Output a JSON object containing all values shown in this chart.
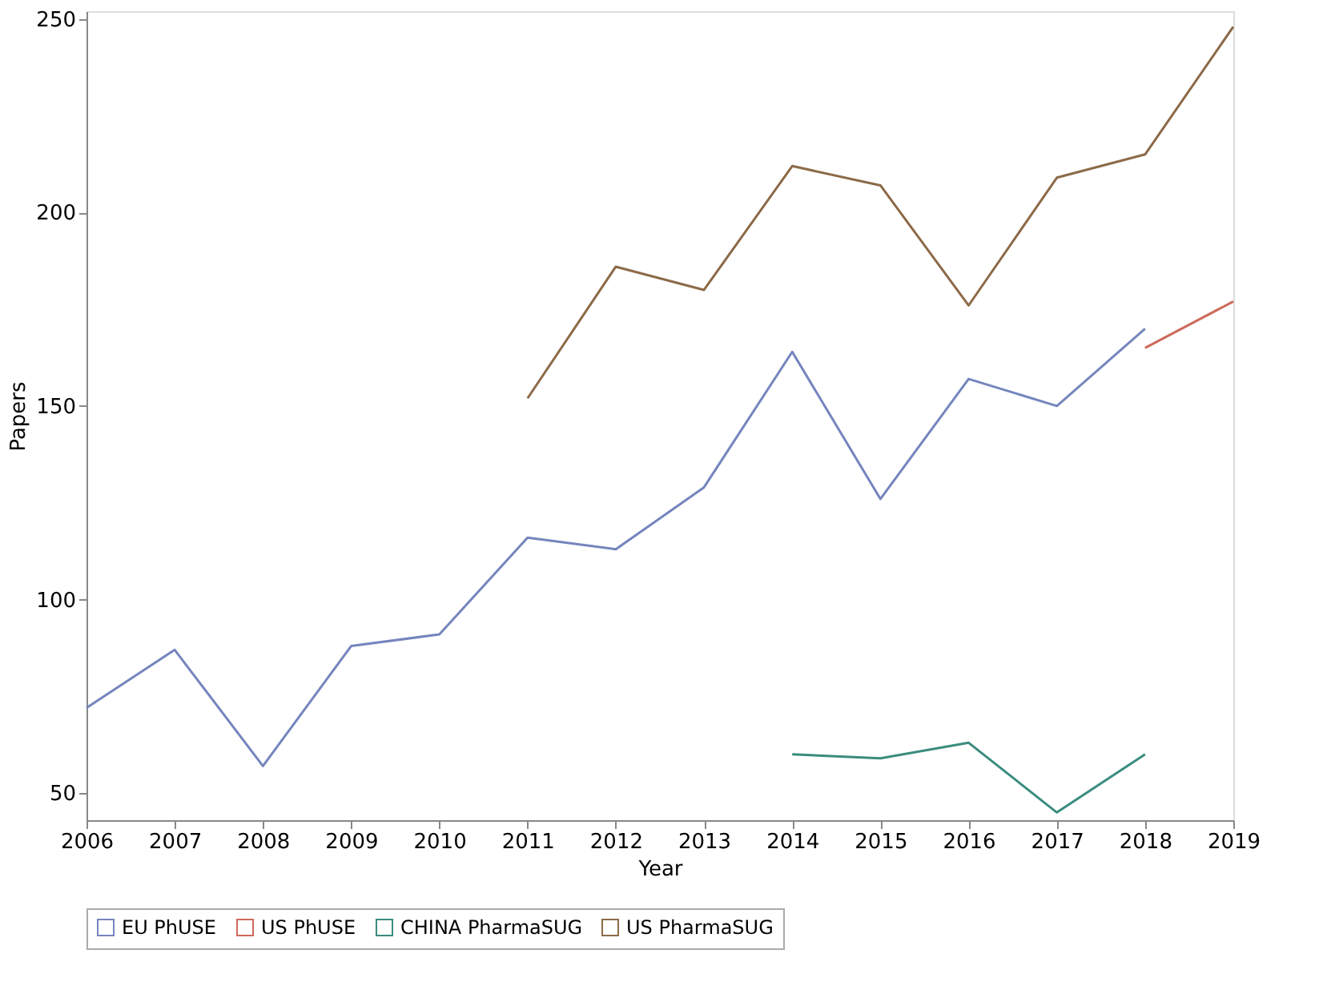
{
  "chart_data": {
    "type": "line",
    "xlabel": "Year",
    "ylabel": "Papers",
    "xlim": [
      2006,
      2019
    ],
    "xticks": [
      2006,
      2007,
      2008,
      2009,
      2010,
      2011,
      2012,
      2013,
      2014,
      2015,
      2016,
      2017,
      2018,
      2019
    ],
    "ylim": [
      43,
      252
    ],
    "yticks": [
      50,
      100,
      150,
      200,
      250
    ],
    "grid": false,
    "legend": "bottom",
    "line_style": "solid",
    "marker": "none",
    "series": [
      {
        "name": "EU PhUSE",
        "color": "#7585bd",
        "x": [
          2006,
          2007,
          2008,
          2009,
          2010,
          2011,
          2012,
          2013,
          2014,
          2015,
          2016,
          2017,
          2018
        ],
        "values": [
          72,
          87,
          57,
          88,
          91,
          116,
          113,
          129,
          164,
          126,
          157,
          150,
          170
        ]
      },
      {
        "name": "US PhUSE",
        "color": "#cc6a5a",
        "x": [
          2018,
          2019
        ],
        "values": [
          165,
          177
        ]
      },
      {
        "name": "CHINA PharmaSUG",
        "color": "#3a8c7e",
        "x": [
          2014,
          2015,
          2016,
          2017,
          2018
        ],
        "values": [
          60,
          59,
          63,
          45,
          60
        ]
      },
      {
        "name": "US PharmaSUG",
        "color": "#8c6a48",
        "x": [
          2011,
          2012,
          2013,
          2014,
          2015,
          2016,
          2017,
          2018,
          2019
        ],
        "values": [
          152,
          186,
          180,
          212,
          207,
          176,
          209,
          215,
          248
        ]
      }
    ]
  }
}
